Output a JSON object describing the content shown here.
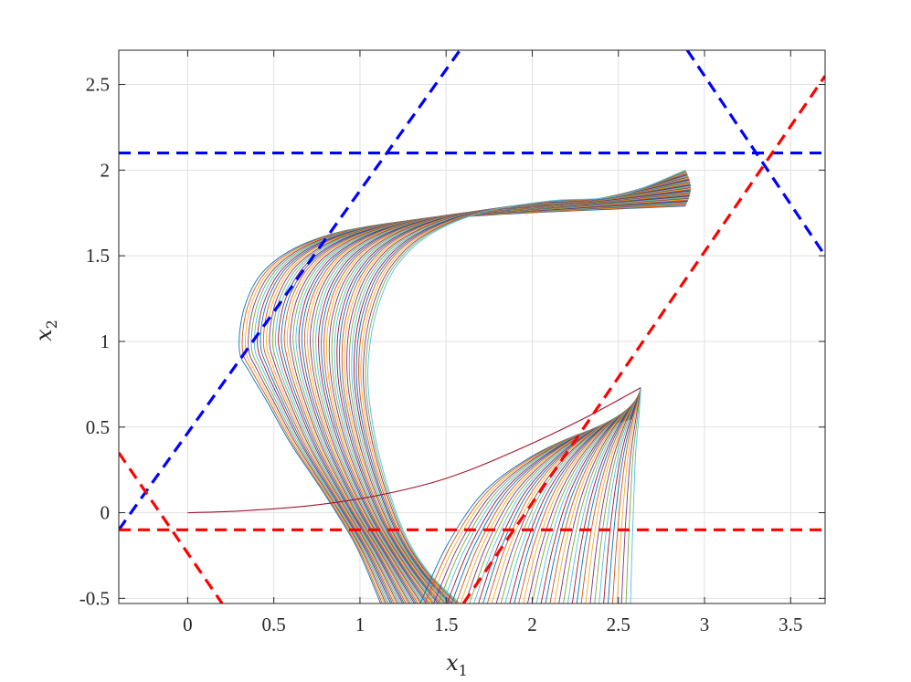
{
  "chart_data": {
    "type": "line",
    "title": "",
    "xlabel": "x",
    "xlabel_subscript": "1",
    "ylabel": "x",
    "ylabel_subscript": "2",
    "xlim": [
      -0.4,
      3.7
    ],
    "ylim": [
      -0.53,
      2.7
    ],
    "x_ticks": [
      0,
      0.5,
      1,
      1.5,
      2,
      2.5,
      3,
      3.5
    ],
    "x_tick_labels": [
      "0",
      "0.5",
      "1",
      "1.5",
      "2",
      "2.5",
      "3",
      "3.5"
    ],
    "y_ticks": [
      -0.5,
      0,
      0.5,
      1,
      1.5,
      2,
      2.5
    ],
    "y_tick_labels": [
      "-0.5",
      "0",
      "0.5",
      "1",
      "1.5",
      "2",
      "2.5"
    ],
    "grid": true,
    "legend": "none",
    "boundary_lines": [
      {
        "color": "#0000ff",
        "style": "dashed",
        "x": [
          -0.4,
          1.58
        ],
        "y": [
          -0.1,
          2.7
        ]
      },
      {
        "color": "#0000ff",
        "style": "dashed",
        "x": [
          -0.4,
          3.7
        ],
        "y": [
          2.1,
          2.1
        ]
      },
      {
        "color": "#0000ff",
        "style": "dashed",
        "x": [
          2.9,
          3.7
        ],
        "y": [
          2.7,
          1.5
        ]
      },
      {
        "color": "#ff0000",
        "style": "dashed",
        "x": [
          -0.4,
          3.7
        ],
        "y": [
          -0.1,
          -0.1
        ]
      },
      {
        "color": "#ff0000",
        "style": "dashed",
        "x": [
          -0.4,
          0.2
        ],
        "y": [
          0.35,
          -0.53
        ]
      },
      {
        "color": "#ff0000",
        "style": "dashed",
        "x": [
          1.6,
          3.7
        ],
        "y": [
          -0.53,
          2.55
        ]
      }
    ],
    "trajectory_family_A": {
      "count": 48,
      "colors": [
        "#0072bd",
        "#d95319",
        "#edb120",
        "#7e2f8e",
        "#77ac30",
        "#4dbeee",
        "#a2142f"
      ],
      "first_curve": {
        "x": [
          1.12,
          0.98,
          0.8,
          0.6,
          0.46,
          0.36,
          0.3,
          0.33,
          0.45,
          0.7,
          1.1,
          1.8,
          2.89
        ],
        "y": [
          -0.53,
          -0.2,
          0.1,
          0.4,
          0.65,
          0.82,
          0.95,
          1.2,
          1.42,
          1.58,
          1.68,
          1.74,
          1.79
        ]
      },
      "last_curve": {
        "x": [
          1.58,
          1.4,
          1.25,
          1.12,
          1.05,
          1.06,
          1.12,
          1.22,
          1.4,
          1.7,
          2.1,
          2.5,
          2.89
        ],
        "y": [
          -0.53,
          -0.35,
          -0.1,
          0.3,
          0.7,
          1.0,
          1.25,
          1.45,
          1.62,
          1.75,
          1.82,
          1.85,
          1.86
        ]
      },
      "end_arc": {
        "x_end": 2.89,
        "y_start": 1.79,
        "y_end": 2.0,
        "x_bulge": 0.03
      }
    },
    "trajectory_family_B": {
      "count": 48,
      "colors": [
        "#0072bd",
        "#d95319",
        "#edb120",
        "#7e2f8e",
        "#77ac30",
        "#4dbeee",
        "#a2142f"
      ],
      "first_curve": {
        "x": [
          1.35,
          1.5,
          1.7,
          1.95,
          2.25,
          2.58
        ],
        "y": [
          -0.53,
          -0.2,
          0.1,
          0.3,
          0.45,
          0.55
        ]
      },
      "last_curve": {
        "x": [
          2.57,
          2.58,
          2.59,
          2.6,
          2.62,
          2.63
        ],
        "y": [
          -0.53,
          -0.2,
          0.1,
          0.35,
          0.57,
          0.73
        ]
      },
      "tail_curve": {
        "x": [
          0.0,
          0.3,
          0.7,
          1.1,
          1.5,
          1.9,
          2.3,
          2.63
        ],
        "y": [
          0.0,
          0.01,
          0.04,
          0.1,
          0.2,
          0.36,
          0.55,
          0.73
        ]
      }
    }
  }
}
